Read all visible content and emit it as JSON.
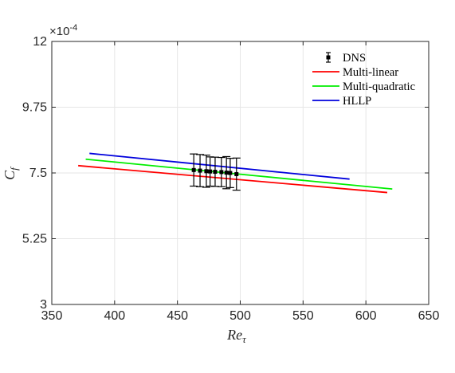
{
  "chart_data": {
    "type": "line",
    "xlabel_base": "Re",
    "xlabel_sub": "τ",
    "ylabel_base": "C",
    "ylabel_sub": "f",
    "xlim": [
      350,
      650
    ],
    "ylim": [
      3,
      12
    ],
    "y_exponent_prefix": "×10",
    "y_exponent_power": "-4",
    "x_ticks": [
      350,
      400,
      450,
      500,
      550,
      600,
      650
    ],
    "x_tick_labels": [
      "350",
      "400",
      "450",
      "500",
      "550",
      "600",
      "650"
    ],
    "y_ticks": [
      3,
      5.25,
      7.5,
      9.75,
      12
    ],
    "y_tick_labels": [
      "3",
      "5.25",
      "7.5",
      "9.75",
      "12"
    ],
    "grid": true,
    "legend_position": "top-right",
    "series": [
      {
        "name": "DNS",
        "kind": "errorbar",
        "color": "#000000",
        "x": [
          463,
          468,
          473,
          476,
          480,
          485,
          489,
          492,
          497
        ],
        "y": [
          7.6,
          7.58,
          7.56,
          7.55,
          7.54,
          7.53,
          7.51,
          7.5,
          7.46
        ],
        "err": [
          0.55,
          0.55,
          0.55,
          0.5,
          0.5,
          0.5,
          0.55,
          0.5,
          0.55
        ]
      },
      {
        "name": "Multi-linear",
        "kind": "line",
        "color": "#ff0000",
        "x": [
          371,
          617
        ],
        "y": [
          7.75,
          6.83
        ]
      },
      {
        "name": "Multi-quadratic",
        "kind": "line",
        "color": "#00ee00",
        "x": [
          377,
          621
        ],
        "y": [
          7.97,
          6.95
        ]
      },
      {
        "name": "HLLP",
        "kind": "line",
        "color": "#0000dd",
        "x": [
          380,
          587
        ],
        "y": [
          8.17,
          7.29
        ]
      }
    ]
  }
}
